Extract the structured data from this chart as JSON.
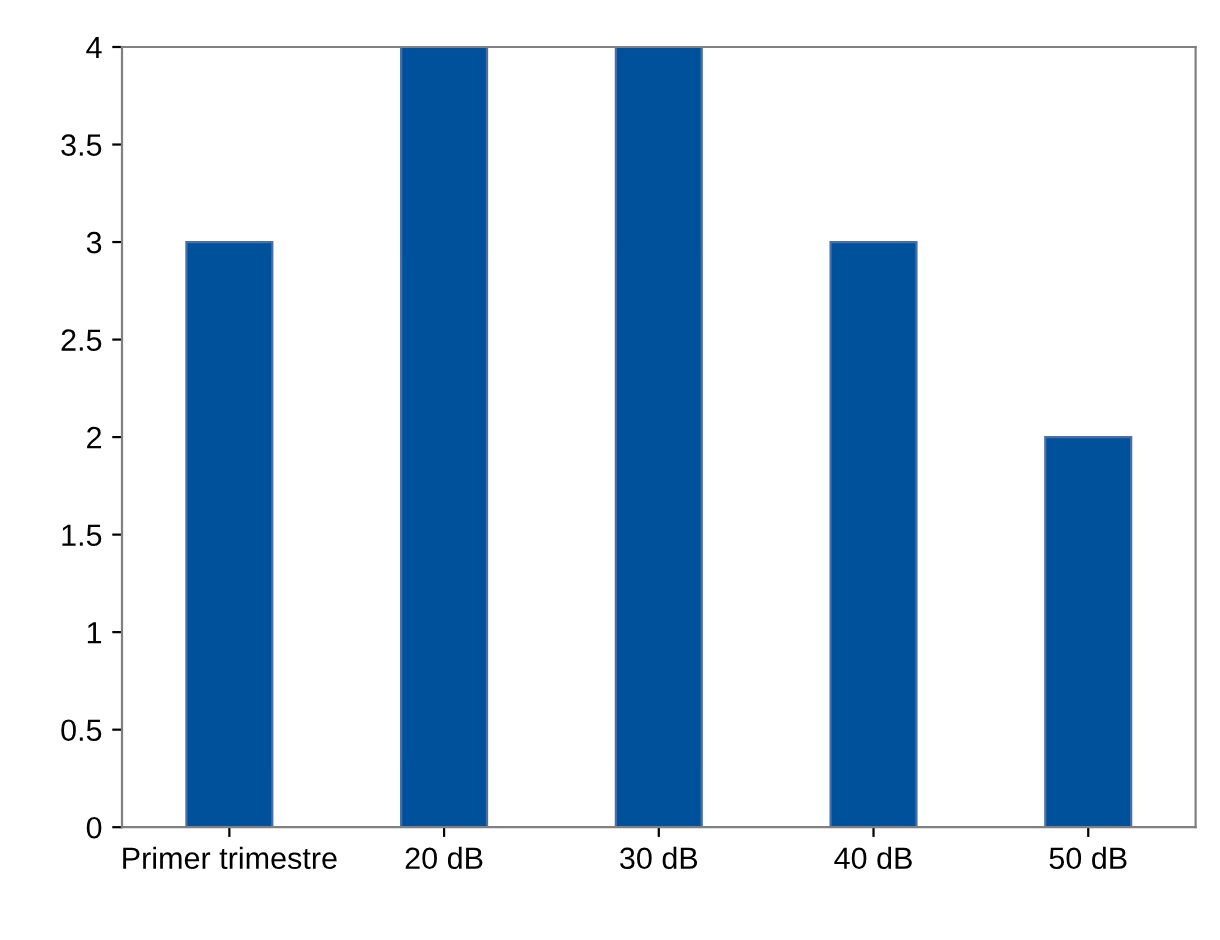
{
  "chart_data": {
    "type": "bar",
    "categories": [
      "Primer trimestre",
      "20 dB",
      "30 dB",
      "40 dB",
      "50 dB"
    ],
    "values": [
      3,
      4,
      4,
      3,
      2
    ],
    "color": "#00519c",
    "ylim": [
      0,
      4
    ],
    "yticks": [
      0,
      0.5,
      1,
      1.5,
      2,
      2.5,
      3,
      3.5,
      4
    ],
    "grid": false,
    "legend": false
  }
}
